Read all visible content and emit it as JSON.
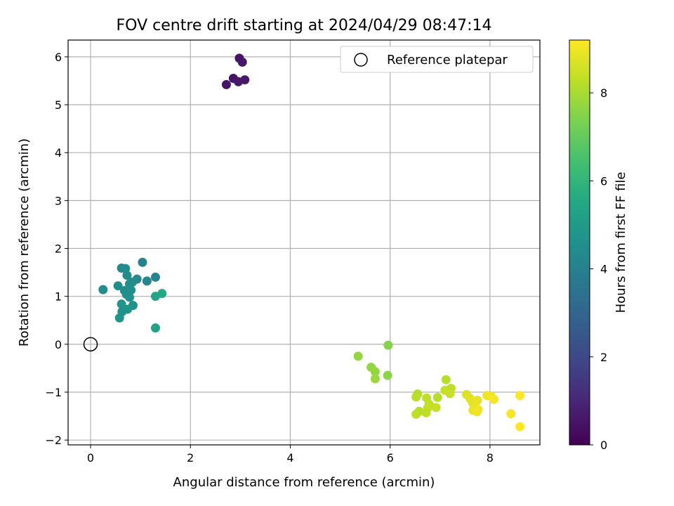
{
  "chart_data": {
    "type": "scatter",
    "title": "FOV centre drift starting at 2024/04/29 08:47:14",
    "xlabel": "Angular distance from reference (arcmin)",
    "ylabel": "Rotation from reference (arcmin)",
    "xlim": [
      -0.45,
      9.0
    ],
    "ylim": [
      -2.1,
      6.35
    ],
    "xticks": [
      0,
      2,
      4,
      6,
      8
    ],
    "yticks": [
      -2,
      -1,
      0,
      1,
      2,
      3,
      4,
      5,
      6
    ],
    "grid": true,
    "legend": {
      "position": "top-right",
      "entries": [
        "Reference platepar"
      ]
    },
    "reference_point": {
      "x": 0,
      "y": 0,
      "label": "Reference platepar"
    },
    "colorbar": {
      "label": "Hours from first FF file",
      "colormap": "viridis",
      "range": [
        0,
        9.2
      ],
      "ticks": [
        0,
        2,
        4,
        6,
        8
      ]
    },
    "points": [
      {
        "x": 2.98,
        "y": 5.97,
        "c": 0.5
      },
      {
        "x": 3.04,
        "y": 5.89,
        "c": 0.6
      },
      {
        "x": 2.86,
        "y": 5.55,
        "c": 0.5
      },
      {
        "x": 2.96,
        "y": 5.48,
        "c": 0.6
      },
      {
        "x": 3.09,
        "y": 5.52,
        "c": 0.6
      },
      {
        "x": 2.72,
        "y": 5.42,
        "c": 0.5
      },
      {
        "x": 0.25,
        "y": 1.14,
        "c": 4.4
      },
      {
        "x": 0.62,
        "y": 1.59,
        "c": 4.3
      },
      {
        "x": 0.7,
        "y": 1.58,
        "c": 4.4
      },
      {
        "x": 1.04,
        "y": 1.71,
        "c": 4.1
      },
      {
        "x": 0.55,
        "y": 1.22,
        "c": 4.5
      },
      {
        "x": 0.73,
        "y": 1.44,
        "c": 4.5
      },
      {
        "x": 0.93,
        "y": 1.36,
        "c": 4.3
      },
      {
        "x": 0.84,
        "y": 1.3,
        "c": 4.4
      },
      {
        "x": 0.78,
        "y": 1.26,
        "c": 4.5
      },
      {
        "x": 1.13,
        "y": 1.32,
        "c": 4.2
      },
      {
        "x": 1.3,
        "y": 1.4,
        "c": 4.1
      },
      {
        "x": 0.68,
        "y": 1.12,
        "c": 4.5
      },
      {
        "x": 0.81,
        "y": 1.13,
        "c": 4.6
      },
      {
        "x": 0.72,
        "y": 1.04,
        "c": 4.5
      },
      {
        "x": 0.78,
        "y": 0.98,
        "c": 4.6
      },
      {
        "x": 0.62,
        "y": 0.84,
        "c": 4.7
      },
      {
        "x": 0.85,
        "y": 0.81,
        "c": 4.6
      },
      {
        "x": 0.74,
        "y": 0.73,
        "c": 4.7
      },
      {
        "x": 0.63,
        "y": 0.68,
        "c": 4.6
      },
      {
        "x": 0.58,
        "y": 0.55,
        "c": 4.7
      },
      {
        "x": 1.3,
        "y": 1.0,
        "c": 5.4
      },
      {
        "x": 1.43,
        "y": 1.06,
        "c": 5.5
      },
      {
        "x": 1.3,
        "y": 0.34,
        "c": 5.3
      },
      {
        "x": 5.36,
        "y": -0.25,
        "c": 7.7
      },
      {
        "x": 5.96,
        "y": -0.02,
        "c": 7.5
      },
      {
        "x": 5.62,
        "y": -0.48,
        "c": 7.7
      },
      {
        "x": 5.7,
        "y": -0.57,
        "c": 7.7
      },
      {
        "x": 5.95,
        "y": -0.65,
        "c": 7.6
      },
      {
        "x": 5.7,
        "y": -0.72,
        "c": 7.8
      },
      {
        "x": 6.55,
        "y": -1.04,
        "c": 8.1
      },
      {
        "x": 6.52,
        "y": -1.1,
        "c": 8.2
      },
      {
        "x": 6.73,
        "y": -1.12,
        "c": 8.3
      },
      {
        "x": 6.95,
        "y": -1.11,
        "c": 8.2
      },
      {
        "x": 7.12,
        "y": -0.74,
        "c": 8.2
      },
      {
        "x": 7.1,
        "y": -0.96,
        "c": 8.4
      },
      {
        "x": 7.22,
        "y": -0.92,
        "c": 8.3
      },
      {
        "x": 7.2,
        "y": -1.03,
        "c": 8.4
      },
      {
        "x": 6.78,
        "y": -1.25,
        "c": 8.3
      },
      {
        "x": 6.75,
        "y": -1.33,
        "c": 8.4
      },
      {
        "x": 6.92,
        "y": -1.32,
        "c": 8.4
      },
      {
        "x": 6.58,
        "y": -1.4,
        "c": 8.2
      },
      {
        "x": 6.72,
        "y": -1.43,
        "c": 8.3
      },
      {
        "x": 6.52,
        "y": -1.46,
        "c": 8.3
      },
      {
        "x": 7.53,
        "y": -1.05,
        "c": 8.7
      },
      {
        "x": 7.6,
        "y": -1.13,
        "c": 8.8
      },
      {
        "x": 7.65,
        "y": -1.22,
        "c": 8.8
      },
      {
        "x": 7.75,
        "y": -1.17,
        "c": 8.9
      },
      {
        "x": 7.7,
        "y": -1.33,
        "c": 8.9
      },
      {
        "x": 7.76,
        "y": -1.36,
        "c": 9.0
      },
      {
        "x": 7.66,
        "y": -1.38,
        "c": 8.9
      },
      {
        "x": 7.74,
        "y": -1.41,
        "c": 9.0
      },
      {
        "x": 7.94,
        "y": -1.07,
        "c": 9.0
      },
      {
        "x": 8.02,
        "y": -1.08,
        "c": 9.0
      },
      {
        "x": 8.08,
        "y": -1.15,
        "c": 9.1
      },
      {
        "x": 8.6,
        "y": -1.07,
        "c": 9.2
      },
      {
        "x": 8.42,
        "y": -1.45,
        "c": 9.1
      },
      {
        "x": 8.6,
        "y": -1.72,
        "c": 9.2
      }
    ]
  }
}
